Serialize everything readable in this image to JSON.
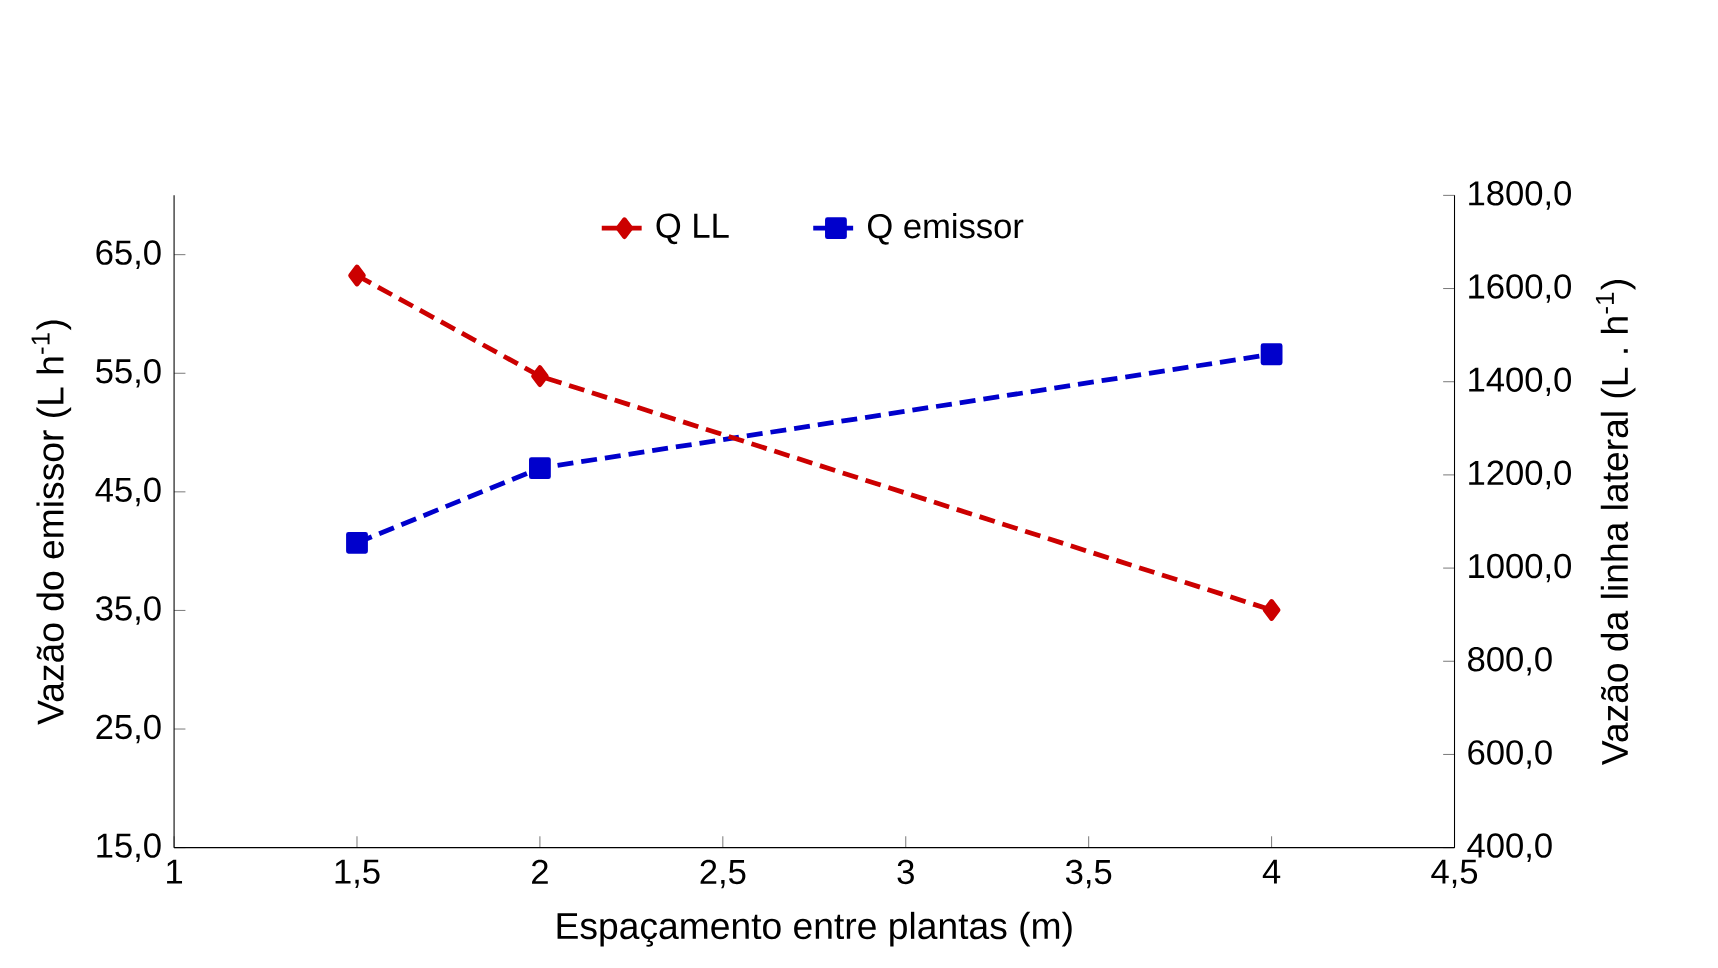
{
  "chart_data": {
    "type": "line",
    "xlabel": "Espaçamento entre  plantas (m)",
    "ylabel": "Vazão do emissor (L h$^{-1}$)",
    "y2label": "Vazão da linha lateral (L . h$^{-1}$)",
    "x": [
      1.5,
      2,
      4
    ],
    "series": [
      {
        "name": "Q LL",
        "color": "#cc0000",
        "values": [
          1628,
          1412,
          910
        ],
        "axis": "y2",
        "marker": "diamond",
        "line_style": "dashed"
      },
      {
        "name": "Q emissor",
        "color": "#0000cc",
        "values": [
          40.7,
          47.0,
          56.6
        ],
        "marker": "square",
        "line_style": "dashed"
      }
    ],
    "xlim": [
      1,
      4.5
    ],
    "xticks": [
      1,
      {
        "value": 1.5,
        "label": "1,5"
      },
      2,
      {
        "value": 2.5,
        "label": "2,5"
      },
      3,
      {
        "value": 3.5,
        "label": "3,5"
      },
      4,
      {
        "value": 4.5,
        "label": "4,5"
      }
    ],
    "ylim": [
      15,
      70
    ],
    "yticks": [
      {
        "value": 15,
        "label": "15,0"
      },
      {
        "value": 25,
        "label": "25,0"
      },
      {
        "value": 35,
        "label": "35,0"
      },
      {
        "value": 45,
        "label": "45,0"
      },
      {
        "value": 55,
        "label": "55,0"
      },
      {
        "value": 65,
        "label": "65,0"
      }
    ],
    "y2lim": [
      400,
      1800
    ],
    "y2ticks": [
      {
        "value": 400,
        "label": "400,0"
      },
      {
        "value": 600,
        "label": "600,0"
      },
      {
        "value": 800,
        "label": "800,0"
      },
      {
        "value": 1000,
        "label": "1000,0"
      },
      {
        "value": 1200,
        "label": "1200,0"
      },
      {
        "value": 1400,
        "label": "1400,0"
      },
      {
        "value": 1600,
        "label": "1600,0"
      },
      {
        "value": 1800,
        "label": "1800,0"
      }
    ],
    "legend": "top"
  }
}
